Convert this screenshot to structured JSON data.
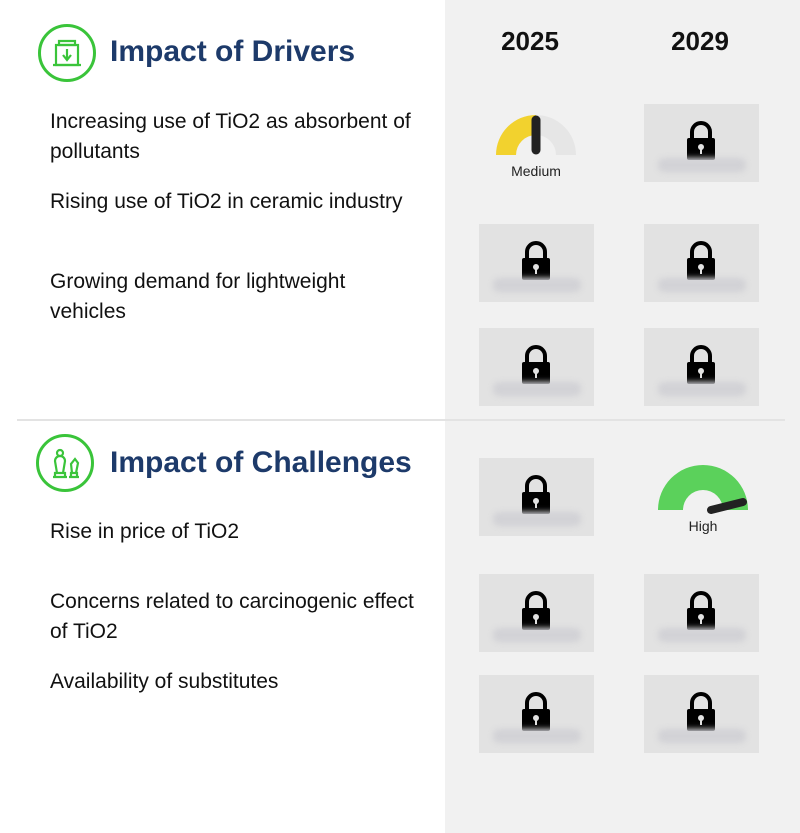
{
  "years": [
    "2025",
    "2029"
  ],
  "drivers": {
    "title": "Impact of Drivers",
    "icon": "building-arrow-icon",
    "items": [
      "Increasing use of TiO2 as absorbent of pollutants",
      "Rising use of TiO2 in ceramic industry",
      "Growing demand for lightweight vehicles"
    ]
  },
  "challenges": {
    "title": "Impact of Challenges",
    "icon": "chess-icon",
    "items": [
      "Rise in price of TiO2",
      "Concerns related to carcinogenic effect of TiO2",
      "Availability of substitutes"
    ]
  },
  "gauges": {
    "medium": {
      "label": "Medium",
      "color": "#f2d22e",
      "level": 0.5
    },
    "high": {
      "label": "High",
      "color": "#5bd15b",
      "level": 0.9
    }
  },
  "colors": {
    "accent_green": "#3ac43a",
    "title_blue": "#1d3a6a",
    "lock_box": "#e2e2e2"
  }
}
